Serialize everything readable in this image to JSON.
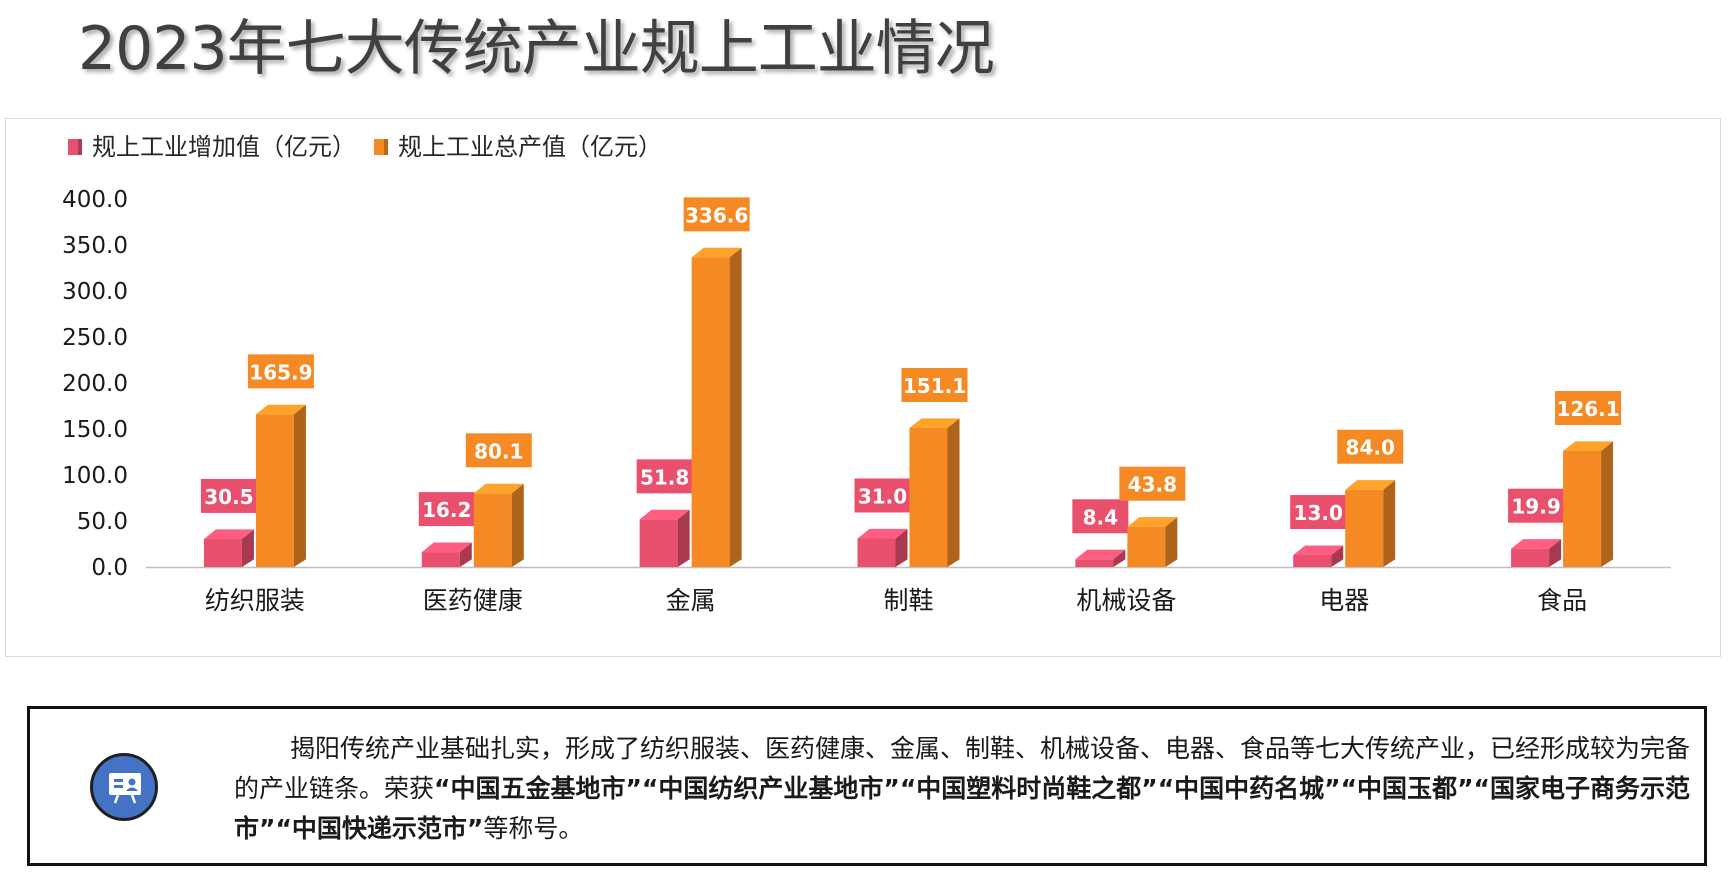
{
  "title": "2023年七大传统产业规上工业情况",
  "chart_data": {
    "type": "bar",
    "categories": [
      "纺织服装",
      "医药健康",
      "金属",
      "制鞋",
      "机械设备",
      "电器",
      "食品"
    ],
    "series": [
      {
        "name": "规上工业增加值（亿元）",
        "values": [
          30.5,
          16.2,
          51.8,
          31.0,
          8.4,
          13.0,
          19.9
        ],
        "color": "#e8506e"
      },
      {
        "name": "规上工业总产值（亿元）",
        "values": [
          165.9,
          80.1,
          336.6,
          151.1,
          43.8,
          84.0,
          126.1
        ],
        "color": "#f58a24"
      }
    ],
    "ylim": [
      0,
      400
    ],
    "yticks": [
      "0.0",
      "50.0",
      "100.0",
      "150.0",
      "200.0",
      "250.0",
      "300.0",
      "350.0",
      "400.0"
    ],
    "legend_position": "top-left",
    "grid": false,
    "style": "3d-bar"
  },
  "info": {
    "icon": "presentation-icon",
    "intro": "揭阳传统产业基础扎实，形成了纺织服装、医药健康、金属、制鞋、机械设备、电器、食品等七大传统产业，已经形成较为完备的产业链条。荣获",
    "honors": [
      "“中国五金基地市”",
      "“中国纺织产业基地市”",
      "“中国塑料时尚鞋之都”",
      "“中国中药名城”",
      "“中国玉都”",
      "“国家电子商务示范市”",
      "“中国快递示范市”"
    ],
    "outro": "等称号。"
  }
}
